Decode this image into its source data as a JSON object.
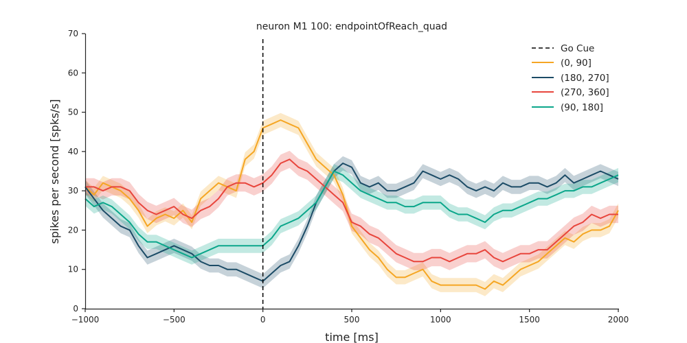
{
  "chart_data": {
    "type": "line",
    "title": "neuron M1 100: endpointOfReach_quad",
    "xlabel": "time [ms]",
    "ylabel": "spikes per second [spks/s]",
    "xlim": [
      -1000,
      2000
    ],
    "ylim": [
      0,
      70
    ],
    "xticks": [
      -1000,
      -500,
      0,
      500,
      1000,
      1500,
      2000
    ],
    "xtick_labels": [
      "−1000",
      "−500",
      "0",
      "500",
      "1000",
      "1500",
      "2000"
    ],
    "yticks": [
      0,
      10,
      20,
      30,
      40,
      50,
      60,
      70
    ],
    "ytick_labels": [
      "0",
      "10",
      "20",
      "30",
      "40",
      "50",
      "60",
      "70"
    ],
    "grid": false,
    "legend_position": "top-right",
    "vline": {
      "x": 0,
      "label": "Go Cue",
      "color": "#000000",
      "style": "dashed"
    },
    "x": [
      -1000,
      -950,
      -900,
      -850,
      -800,
      -750,
      -700,
      -650,
      -600,
      -550,
      -500,
      -450,
      -400,
      -350,
      -300,
      -250,
      -200,
      -150,
      -100,
      -50,
      0,
      50,
      100,
      150,
      200,
      250,
      300,
      350,
      400,
      450,
      500,
      550,
      600,
      650,
      700,
      750,
      800,
      850,
      900,
      950,
      1000,
      1050,
      1100,
      1150,
      1200,
      1250,
      1300,
      1350,
      1400,
      1450,
      1500,
      1550,
      1600,
      1650,
      1700,
      1750,
      1800,
      1850,
      1900,
      1950,
      2000
    ],
    "series": [
      {
        "name": "(0, 90]",
        "color": "#f5a623",
        "values": [
          31,
          29,
          32,
          31,
          30,
          28,
          25,
          21,
          23,
          24,
          23,
          25,
          22,
          28,
          30,
          32,
          31,
          30,
          38,
          40,
          46,
          47,
          48,
          47,
          46,
          42,
          38,
          36,
          34,
          29,
          21,
          18,
          15,
          13,
          10,
          8,
          8,
          9,
          10,
          7,
          6,
          6,
          6,
          6,
          6,
          5,
          7,
          6,
          8,
          10,
          11,
          12,
          14,
          16,
          18,
          17,
          19,
          20,
          20,
          21,
          25
        ],
        "band": 1.8
      },
      {
        "name": "(180, 270]",
        "color": "#1b4b66",
        "values": [
          31,
          28,
          25,
          23,
          21,
          20,
          16,
          13,
          14,
          15,
          16,
          15,
          14,
          12,
          11,
          11,
          10,
          10,
          9,
          8,
          7,
          9,
          11,
          12,
          16,
          21,
          27,
          31,
          35,
          37,
          36,
          32,
          31,
          32,
          30,
          30,
          31,
          32,
          35,
          34,
          33,
          34,
          33,
          31,
          30,
          31,
          30,
          32,
          31,
          31,
          32,
          32,
          31,
          32,
          34,
          32,
          33,
          34,
          35,
          34,
          33
        ],
        "band": 1.8
      },
      {
        "name": "(270, 360]",
        "color": "#e8453c",
        "values": [
          31,
          31,
          30,
          31,
          31,
          30,
          27,
          25,
          24,
          25,
          26,
          24,
          23,
          25,
          26,
          28,
          31,
          32,
          32,
          31,
          32,
          34,
          37,
          38,
          36,
          35,
          33,
          31,
          29,
          27,
          22,
          21,
          19,
          18,
          16,
          14,
          13,
          12,
          12,
          13,
          13,
          12,
          13,
          14,
          14,
          15,
          13,
          12,
          13,
          14,
          14,
          15,
          15,
          17,
          19,
          21,
          22,
          24,
          23,
          24,
          24
        ],
        "band": 2.2
      },
      {
        "name": "(90, 180]",
        "color": "#0aa68a",
        "values": [
          28,
          26,
          27,
          26,
          24,
          22,
          19,
          17,
          17,
          16,
          15,
          14,
          13,
          14,
          15,
          16,
          16,
          16,
          16,
          16,
          16,
          18,
          21,
          22,
          23,
          25,
          27,
          31,
          35,
          34,
          32,
          30,
          29,
          28,
          27,
          27,
          26,
          26,
          27,
          27,
          27,
          25,
          24,
          24,
          23,
          22,
          24,
          25,
          25,
          26,
          27,
          28,
          28,
          29,
          30,
          30,
          31,
          31,
          32,
          33,
          34
        ],
        "band": 1.8
      }
    ]
  }
}
